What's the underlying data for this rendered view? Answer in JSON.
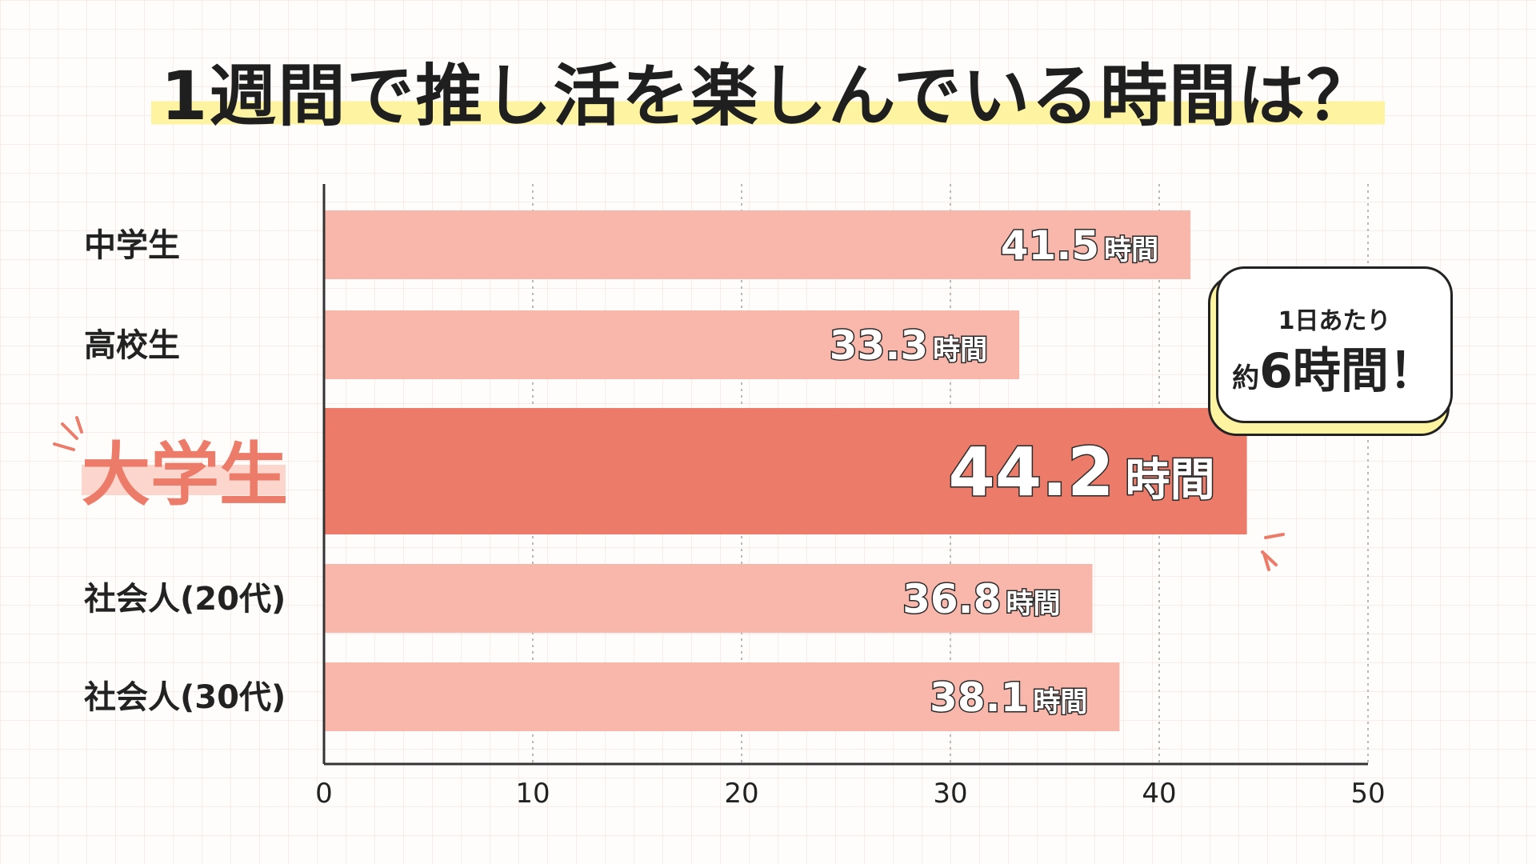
{
  "chart_data": {
    "type": "bar",
    "orientation": "horizontal",
    "title": "1週間で推し活を楽しんでいる時間は？",
    "categories": [
      "中学生",
      "高校生",
      "大学生",
      "社会人(20代)",
      "社会人(30代)"
    ],
    "values": [
      41.5,
      33.3,
      44.2,
      36.8,
      38.1
    ],
    "value_labels": [
      "41.5",
      "33.3",
      "44.2",
      "36.8",
      "38.1"
    ],
    "value_unit": "時間",
    "highlight_index": 2,
    "xlim": [
      0,
      50
    ],
    "xticks": [
      "0",
      "10",
      "20",
      "30",
      "40",
      "50"
    ],
    "grid": true,
    "annotation": {
      "line1": "1日あたり",
      "prefix": "約",
      "line2": "6時間！"
    }
  },
  "colors": {
    "bar": "#f9b7ab",
    "bar_highlight": "#ec7b69",
    "highlight_label": "#ec7b69",
    "highlight_label_bg": "#fcd6cc",
    "title_marker": "#fdf3a0",
    "accent_lines": "#ec7b69"
  }
}
